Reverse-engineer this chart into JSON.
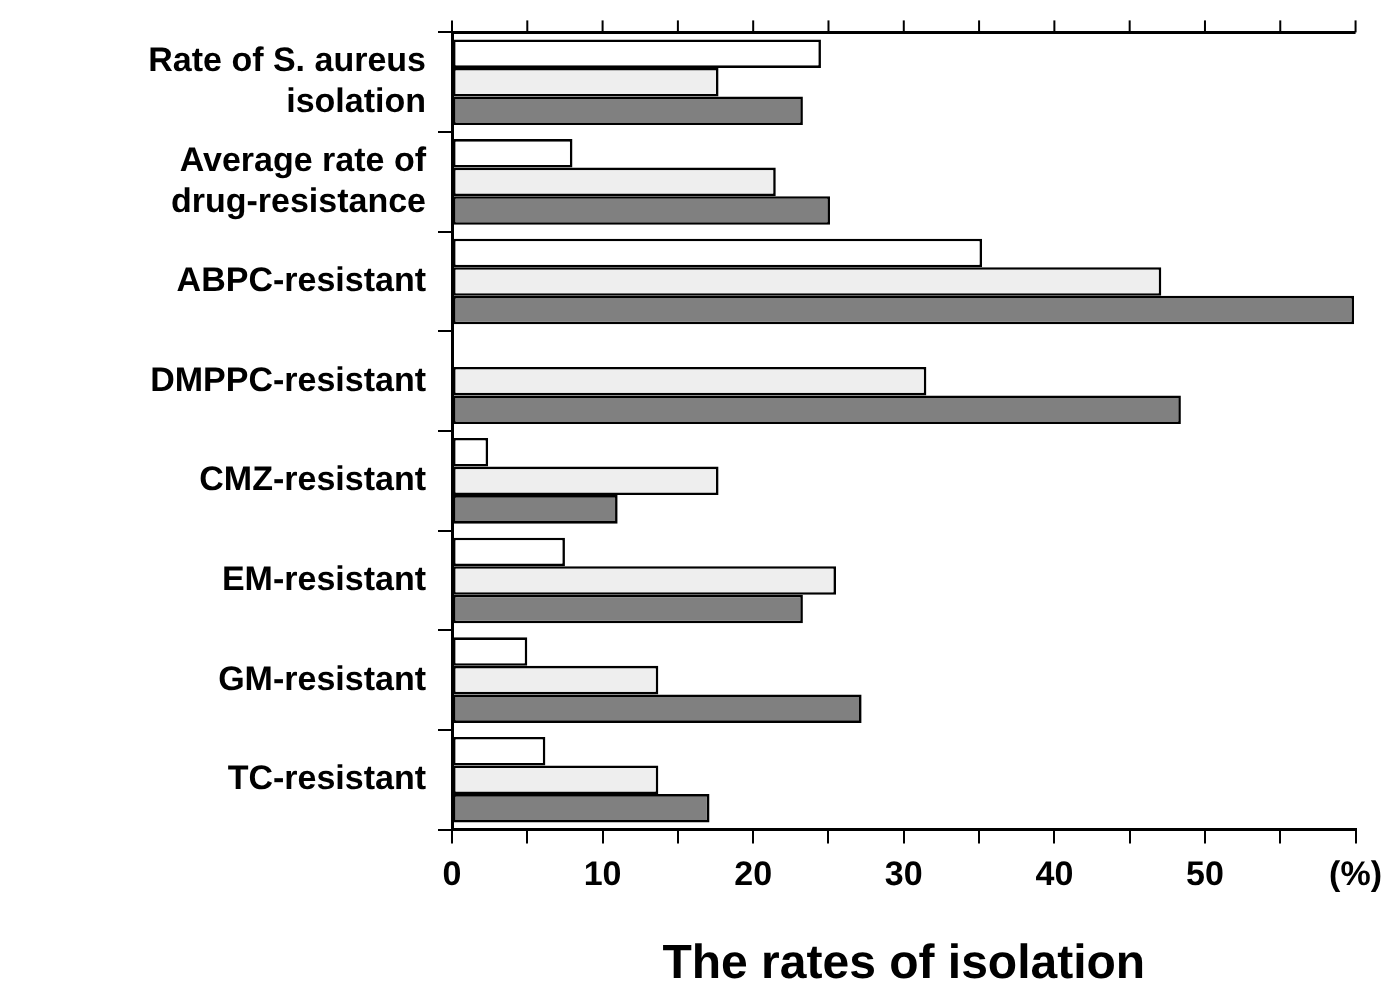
{
  "chart_data": {
    "type": "bar",
    "orientation": "horizontal",
    "xlabel": "The rates of isolation",
    "categories": [
      "Rate of S. aureus isolation",
      "Average rate of drug-resistance",
      "ABPC-resistant",
      "DMPPC-resistant",
      "CMZ-resistant",
      "EM-resistant",
      "GM-resistant",
      "TC-resistant"
    ],
    "series": [
      {
        "color": "#ffffff",
        "values": [
          24.5,
          8.0,
          35.2,
          0,
          2.4,
          7.5,
          5.0,
          6.2
        ]
      },
      {
        "color": "#eeeeee",
        "values": [
          17.7,
          21.5,
          47.1,
          31.5,
          17.7,
          25.5,
          13.7,
          13.7
        ]
      },
      {
        "color": "#808080",
        "values": [
          23.3,
          25.1,
          59.9,
          48.4,
          11.0,
          23.3,
          27.2,
          17.1
        ]
      }
    ],
    "xlim": [
      0,
      60
    ],
    "xticks": [
      0,
      {
        "value": 5,
        "label": null
      },
      10,
      {
        "value": 15,
        "label": null
      },
      20,
      {
        "value": 25,
        "label": null
      },
      30,
      {
        "value": 35,
        "label": null
      },
      40,
      {
        "value": 45,
        "label": null
      },
      50,
      {
        "value": 55,
        "label": null
      },
      {
        "value": 60,
        "label": "(%)"
      }
    ],
    "grid": false,
    "legend": false
  }
}
